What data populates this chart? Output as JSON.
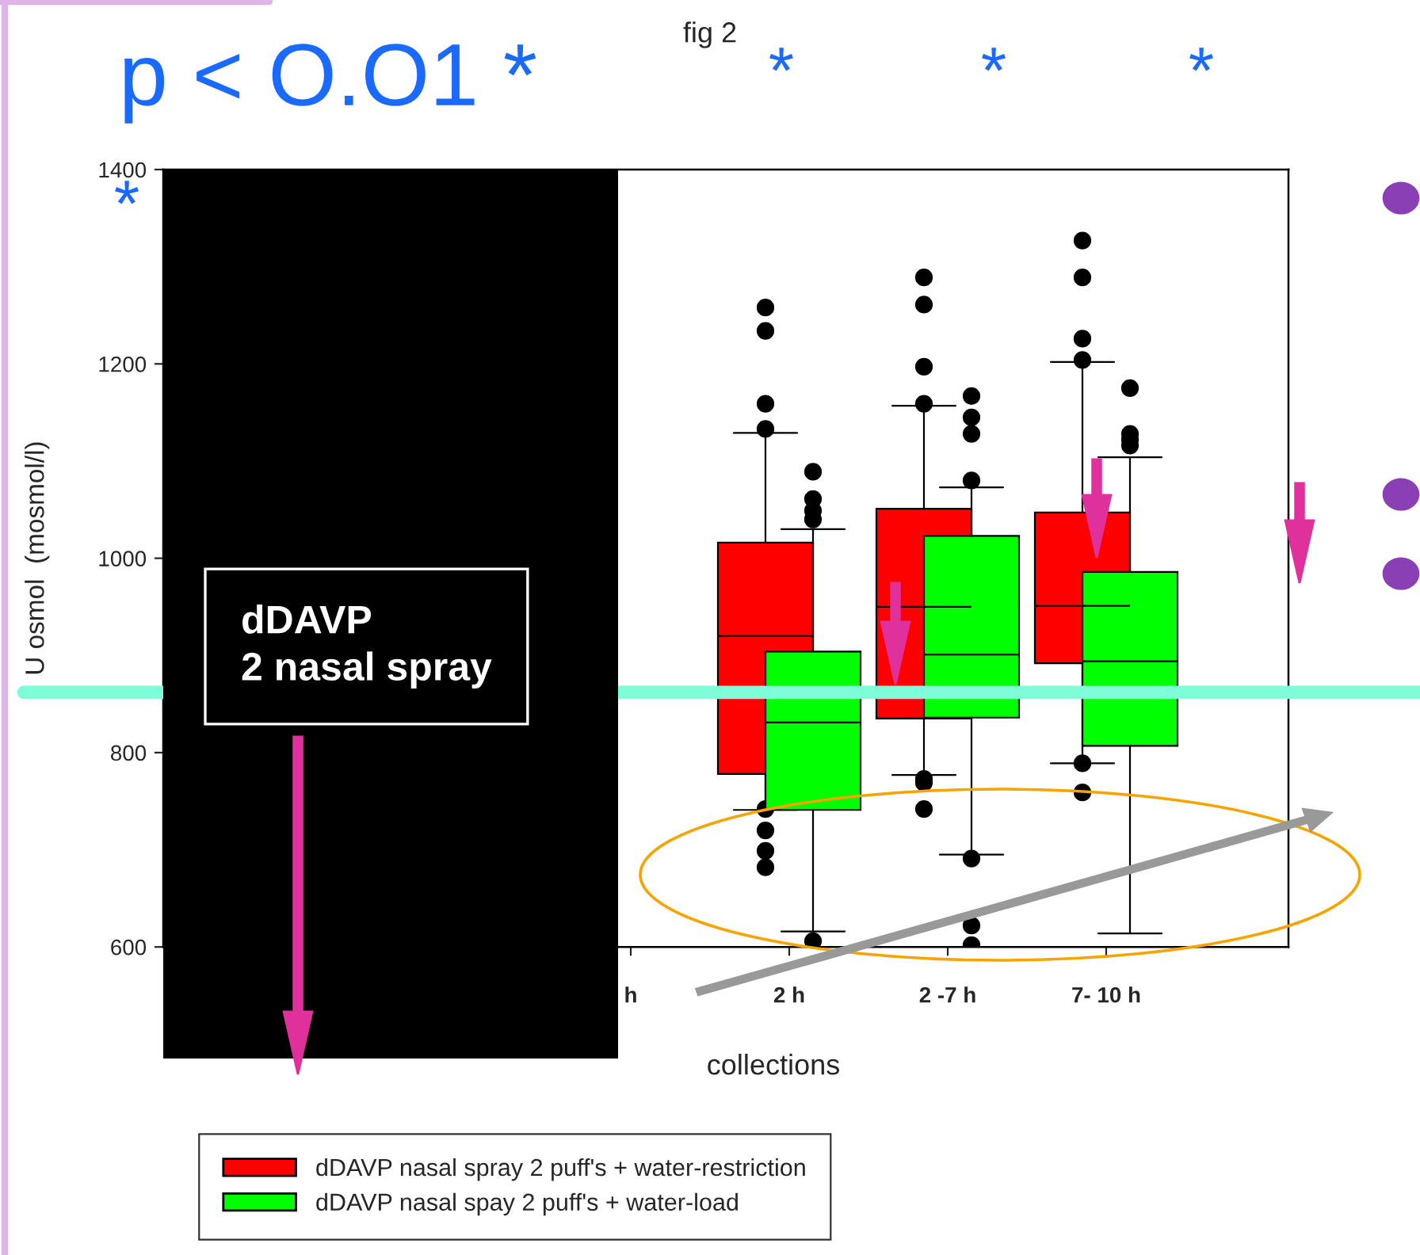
{
  "chart_data": {
    "type": "box",
    "title": "fig 2",
    "xlabel": "collections",
    "ylabel": "U osmol  (mosmol/l)",
    "categories": [
      null,
      null,
      "h",
      "2 h",
      "2 -7 h",
      "7- 10 h"
    ],
    "series": [
      {
        "name": "dDAVP nasal spray 2 puff's + water-restriction",
        "color": "#ff0000",
        "boxes": [
          null,
          null,
          null,
          {
            "low": 741,
            "q1": 778,
            "median": 920,
            "q3": 1016,
            "high": 1129,
            "outliers": [
              1258,
              1234,
              1159,
              1133,
              742,
              720,
              699,
              682
            ]
          },
          {
            "low": 777,
            "q1": 835,
            "median": 950,
            "q3": 1051,
            "high": 1157,
            "outliers": [
              1289,
              1261,
              1197,
              1159,
              773,
              769,
              742
            ]
          },
          {
            "low": 789,
            "q1": 892,
            "median": 951,
            "q3": 1047,
            "high": 1202,
            "outliers": [
              1327,
              1289,
              1226,
              1204,
              789,
              759
            ]
          }
        ]
      },
      {
        "name": "dDAVP nasal spay 2 puff's + water-load",
        "color": "#00ff00",
        "boxes": [
          null,
          null,
          null,
          {
            "low": 616,
            "q1": 741,
            "median": 831,
            "q3": 904,
            "high": 1030,
            "outliers": [
              1089,
              1061,
              1049,
              1040,
              606
            ]
          },
          {
            "low": 695,
            "q1": 836,
            "median": 901,
            "q3": 1023,
            "high": 1073,
            "outliers": [
              1167,
              1145,
              1128,
              1080,
              691,
              622,
              602
            ]
          },
          {
            "low": 614,
            "q1": 807,
            "median": 894,
            "q3": 986,
            "high": 1104,
            "outliers": [
              1175,
              1128,
              1122,
              1116
            ]
          }
        ]
      }
    ],
    "ylim": [
      600,
      1400
    ],
    "yticks": [
      600,
      800,
      1000,
      1200,
      1400
    ],
    "legend": "bottom",
    "ref_lines": [
      {
        "axis": "y",
        "value": 862,
        "color": "#7ffcd8"
      }
    ],
    "annotations": [
      "p < O.O1 *",
      "*",
      "*",
      "*",
      "*",
      "dDAVP\n2 nasal spray"
    ]
  }
}
